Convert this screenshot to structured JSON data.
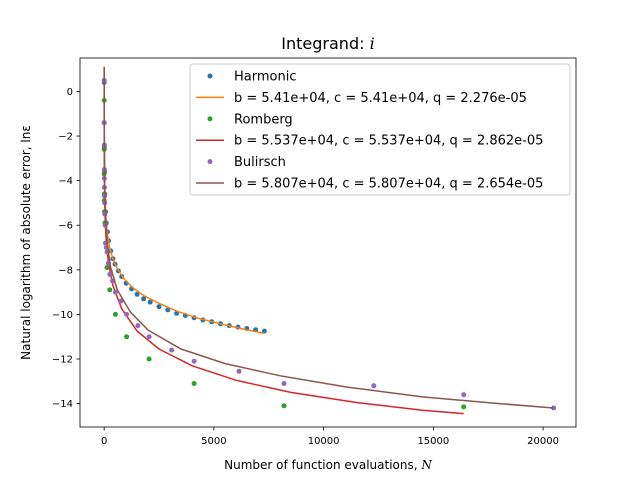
{
  "chart_data": {
    "type": "line",
    "title_prefix": "Integrand: ",
    "title_var": "i",
    "xlabel_text": "Number of function evaluations, ",
    "xlabel_var": "N",
    "ylabel": "Natural logarithm of absolute error, lnε",
    "xlim": [
      -1100,
      21500
    ],
    "ylim": [
      -15.05,
      1.5
    ],
    "xticks": [
      0,
      5000,
      10000,
      15000,
      20000
    ],
    "yticks": [
      0,
      -2,
      -4,
      -6,
      -8,
      -10,
      -12,
      -14
    ],
    "grid": false,
    "legend_position": "top-right",
    "legend": [
      {
        "label": "Harmonic",
        "kind": "marker",
        "color": "#1f77b4"
      },
      {
        "label": "b = 5.41e+04, c = 5.41e+04, q = 2.276e-05",
        "kind": "line",
        "color": "#ff7f0e"
      },
      {
        "label": "Romberg",
        "kind": "marker",
        "color": "#2ca02c"
      },
      {
        "label": "b = 5.537e+04, c = 5.537e+04, q = 2.862e-05",
        "kind": "line",
        "color": "#d62728"
      },
      {
        "label": "Bulirsch",
        "kind": "marker",
        "color": "#9467bd"
      },
      {
        "label": "b = 5.807e+04, c = 5.807e+04, q = 2.654e-05",
        "kind": "line",
        "color": "#8c564b"
      }
    ],
    "series": [
      {
        "name": "Harmonic",
        "kind": "scatter",
        "color": "#1f77b4",
        "x": [
          2,
          4,
          8,
          16,
          32,
          64,
          100,
          150,
          200,
          300,
          400,
          500,
          650,
          800,
          1000,
          1250,
          1500,
          1800,
          2100,
          2500,
          2900,
          3300,
          3700,
          4100,
          4500,
          4900,
          5300,
          5700,
          6100,
          6500,
          6900,
          7300
        ],
        "y": [
          0.4,
          -1.4,
          -2.5,
          -3.6,
          -4.6,
          -5.4,
          -5.9,
          -6.3,
          -6.7,
          -7.15,
          -7.5,
          -7.75,
          -8.05,
          -8.3,
          -8.6,
          -8.85,
          -9.1,
          -9.3,
          -9.45,
          -9.65,
          -9.8,
          -9.95,
          -10.05,
          -10.15,
          -10.25,
          -10.33,
          -10.42,
          -10.5,
          -10.57,
          -10.63,
          -10.69,
          -10.75
        ]
      },
      {
        "name": "b = 5.41e+04, c = 5.41e+04, q = 2.276e-05",
        "kind": "line",
        "color": "#ff7f0e",
        "x": [
          2,
          6,
          12,
          20,
          35,
          60,
          100,
          160,
          250,
          400,
          600,
          900,
          1300,
          1800,
          2500,
          3300,
          4200,
          5200,
          6300,
          7300
        ],
        "y": [
          0.5,
          -1.8,
          -3.0,
          -3.8,
          -4.6,
          -5.3,
          -5.95,
          -6.5,
          -7.0,
          -7.5,
          -7.95,
          -8.4,
          -8.8,
          -9.15,
          -9.5,
          -9.85,
          -10.15,
          -10.4,
          -10.65,
          -10.85
        ]
      },
      {
        "name": "Romberg",
        "kind": "scatter",
        "color": "#2ca02c",
        "x": [
          1,
          2,
          3,
          5,
          9,
          17,
          33,
          65,
          129,
          257,
          513,
          1025,
          2049,
          4097,
          8193,
          16385
        ],
        "y": [
          -0.4,
          -2.6,
          -3.7,
          -4.6,
          -4.9,
          -5.4,
          -5.9,
          -6.8,
          -7.9,
          -8.9,
          -10.0,
          -11.0,
          -12.0,
          -13.1,
          -14.1,
          -14.15
        ]
      },
      {
        "name": "b = 5.537e+04, c = 5.537e+04, q = 2.862e-05",
        "kind": "line",
        "color": "#d62728",
        "x": [
          1,
          3,
          6,
          12,
          25,
          50,
          100,
          200,
          400,
          800,
          1500,
          2500,
          4000,
          6000,
          8500,
          11500,
          14500,
          16385
        ],
        "y": [
          1.1,
          -1.2,
          -2.6,
          -3.8,
          -4.9,
          -5.85,
          -6.75,
          -7.7,
          -8.7,
          -9.75,
          -10.75,
          -11.55,
          -12.3,
          -12.95,
          -13.5,
          -13.95,
          -14.3,
          -14.45
        ]
      },
      {
        "name": "Bulirsch",
        "kind": "scatter",
        "color": "#9467bd",
        "x": [
          2,
          3,
          5,
          7,
          9,
          13,
          17,
          25,
          33,
          49,
          65,
          97,
          129,
          193,
          257,
          385,
          513,
          769,
          1025,
          1537,
          2049,
          3073,
          4097,
          6145,
          8193,
          12289,
          16385,
          20481
        ],
        "y": [
          0.5,
          -1.4,
          -2.4,
          -3.5,
          -3.9,
          -4.3,
          -4.7,
          -5.0,
          -5.5,
          -6.0,
          -6.8,
          -7.0,
          -7.2,
          -7.7,
          -8.2,
          -8.5,
          -9.0,
          -9.4,
          -10.0,
          -10.5,
          -11.0,
          -11.6,
          -12.1,
          -12.55,
          -13.1,
          -13.2,
          -13.6,
          -14.2
        ]
      },
      {
        "name": "b = 5.807e+04, c = 5.807e+04, q = 2.654e-05",
        "kind": "line",
        "color": "#8c564b",
        "x": [
          2,
          5,
          10,
          20,
          40,
          80,
          150,
          300,
          600,
          1200,
          2000,
          3500,
          5500,
          8000,
          11000,
          14500,
          18000,
          20481
        ],
        "y": [
          1.0,
          -1.3,
          -2.7,
          -3.9,
          -5.0,
          -6.0,
          -6.9,
          -7.9,
          -8.9,
          -9.9,
          -10.7,
          -11.55,
          -12.2,
          -12.75,
          -13.25,
          -13.7,
          -14.0,
          -14.2
        ]
      }
    ]
  }
}
